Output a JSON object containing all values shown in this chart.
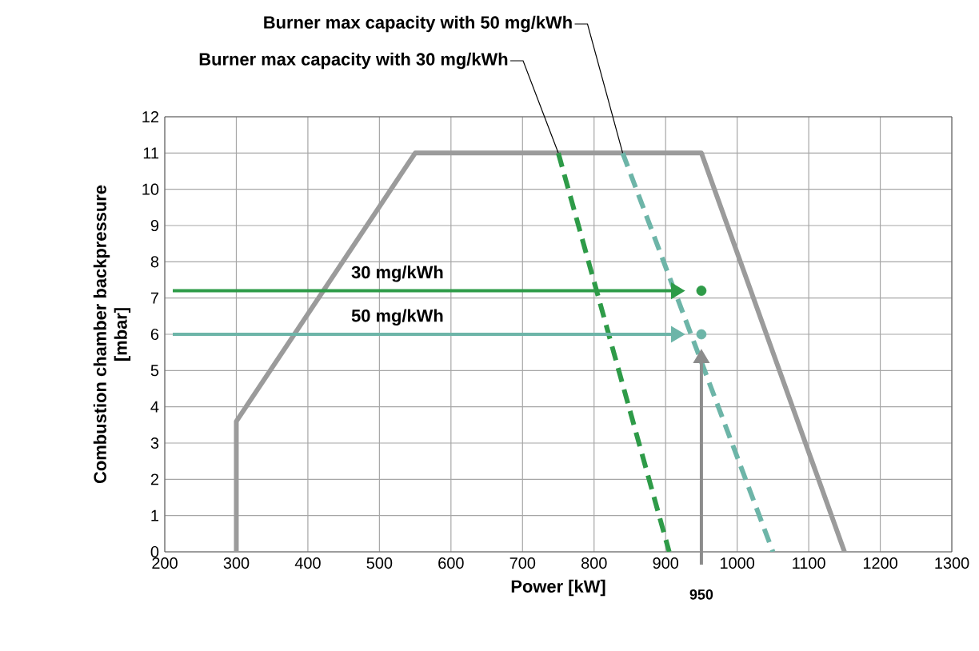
{
  "chart_data": {
    "type": "line",
    "xlabel": "Power [kW]",
    "ylabel": "Combustion chamber backpressure\n[mbar]",
    "xlim": [
      200,
      1300
    ],
    "xticks": [
      200,
      300,
      400,
      500,
      600,
      700,
      800,
      900,
      1000,
      1100,
      1200,
      1300
    ],
    "ylim": [
      0,
      12
    ],
    "yticks": [
      0,
      1,
      2,
      3,
      4,
      5,
      6,
      7,
      8,
      9,
      10,
      11,
      12
    ],
    "grid": true,
    "series": [
      {
        "x": [
          300,
          300,
          550,
          950,
          1150
        ],
        "values": [
          0,
          3.6,
          11,
          11,
          0
        ],
        "color": "#9b9b9b",
        "line_style": "solid"
      },
      {
        "x": [
          750,
          905
        ],
        "values": [
          11,
          0
        ],
        "color": "#2e9b48",
        "line_style": "dashed"
      },
      {
        "x": [
          840,
          1050
        ],
        "values": [
          11,
          0
        ],
        "color": "#6db5a8",
        "line_style": "dashed"
      },
      {
        "type": "scatter",
        "x": [
          950
        ],
        "values": [
          7.2
        ],
        "color": "#2e9b48",
        "marker": "circle"
      },
      {
        "type": "scatter",
        "x": [
          950
        ],
        "values": [
          6.0
        ],
        "color": "#6db5a8",
        "marker": "circle"
      }
    ],
    "annotations": [
      {
        "text": "Burner max capacity with 50 mg/kWh",
        "x": 840,
        "y": 11
      },
      {
        "text": "Burner max capacity with 30 mg/kWh",
        "x": 750,
        "y": 11
      },
      "30 mg/kWh",
      "50 mg/kWh",
      "950"
    ]
  }
}
